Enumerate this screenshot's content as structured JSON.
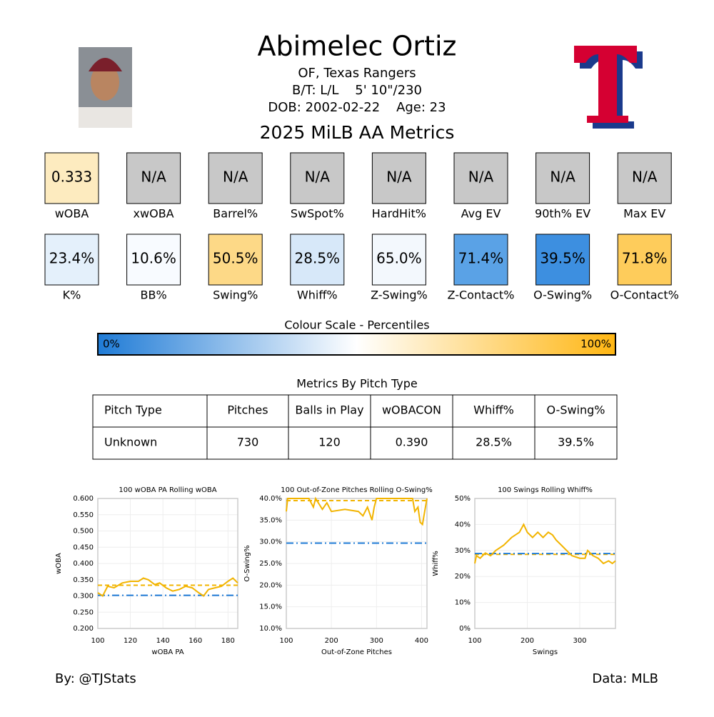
{
  "header": {
    "name": "Abimelec Ortiz",
    "position_team": "OF, Texas Rangers",
    "bats_throws": "B/T: L/L    5' 10\"/230",
    "dob_age": "DOB: 2002-02-22    Age: 23"
  },
  "metrics": {
    "title": "2025 MiLB AA Metrics",
    "rows": [
      [
        {
          "value": "0.333",
          "label": "wOBA",
          "color": "#fdebbf"
        },
        {
          "value": "N/A",
          "label": "xwOBA",
          "color": "#c8c8c8"
        },
        {
          "value": "N/A",
          "label": "Barrel%",
          "color": "#c8c8c8"
        },
        {
          "value": "N/A",
          "label": "SwSpot%",
          "color": "#c8c8c8"
        },
        {
          "value": "N/A",
          "label": "HardHit%",
          "color": "#c8c8c8"
        },
        {
          "value": "N/A",
          "label": "Avg EV",
          "color": "#c8c8c8"
        },
        {
          "value": "N/A",
          "label": "90th% EV",
          "color": "#c8c8c8"
        },
        {
          "value": "N/A",
          "label": "Max EV",
          "color": "#c8c8c8"
        }
      ],
      [
        {
          "value": "23.4%",
          "label": "K%",
          "color": "#e4f0fb"
        },
        {
          "value": "10.6%",
          "label": "BB%",
          "color": "#f8fbff"
        },
        {
          "value": "50.5%",
          "label": "Swing%",
          "color": "#fdd987"
        },
        {
          "value": "28.5%",
          "label": "Whiff%",
          "color": "#d7e8f9"
        },
        {
          "value": "65.0%",
          "label": "Z-Swing%",
          "color": "#f3f8fd"
        },
        {
          "value": "71.4%",
          "label": "Z-Contact%",
          "color": "#5aa2e6"
        },
        {
          "value": "39.5%",
          "label": "O-Swing%",
          "color": "#3d8fe0"
        },
        {
          "value": "71.8%",
          "label": "O-Contact%",
          "color": "#fecc5b"
        }
      ]
    ]
  },
  "colour_scale": {
    "title": "Colour Scale - Percentiles",
    "min_label": "0%",
    "max_label": "100%",
    "colors": [
      "#1f7bd6",
      "#ffffff",
      "#ffb612"
    ]
  },
  "table": {
    "title": "Metrics By Pitch Type",
    "headers": [
      "Pitch Type",
      "Pitches",
      "Balls in Play",
      "wOBACON",
      "Whiff%",
      "O-Swing%"
    ],
    "rows": [
      [
        "Unknown",
        "730",
        "120",
        "0.390",
        "28.5%",
        "39.5%"
      ]
    ]
  },
  "chart_data": [
    {
      "type": "line",
      "title": "100 wOBA PA Rolling wOBA",
      "xlabel": "wOBA PA",
      "ylabel": "wOBA",
      "x": [
        100,
        103,
        106,
        110,
        115,
        120,
        125,
        128,
        131,
        135,
        138,
        142,
        146,
        150,
        154,
        158,
        162,
        165,
        168,
        172,
        176,
        180,
        183,
        186
      ],
      "series": [
        {
          "color": "#f2b400",
          "values": [
            0.31,
            0.3,
            0.33,
            0.325,
            0.34,
            0.345,
            0.345,
            0.355,
            0.35,
            0.335,
            0.34,
            0.325,
            0.315,
            0.32,
            0.33,
            0.325,
            0.31,
            0.3,
            0.32,
            0.325,
            0.33,
            0.345,
            0.355,
            0.34
          ]
        }
      ],
      "reference_lines": [
        {
          "value": 0.333,
          "color": "#f2b400",
          "dash": "dashed"
        },
        {
          "value": 0.302,
          "color": "#1f7bd6",
          "dash": "dashdot"
        }
      ],
      "xlim": [
        100,
        186
      ],
      "ylim": [
        0.2,
        0.6
      ],
      "xticks": [
        100,
        120,
        140,
        160,
        180
      ],
      "yticks": [
        {
          "value": 0.2,
          "label": "0.200"
        },
        {
          "value": 0.25,
          "label": "0.250"
        },
        {
          "value": 0.3,
          "label": "0.300"
        },
        {
          "value": 0.35,
          "label": "0.350"
        },
        {
          "value": 0.4,
          "label": "0.400"
        },
        {
          "value": 0.45,
          "label": "0.450"
        },
        {
          "value": 0.5,
          "label": "0.500"
        },
        {
          "value": 0.55,
          "label": "0.550"
        },
        {
          "value": 0.6,
          "label": "0.600"
        }
      ],
      "grid": true
    },
    {
      "type": "line",
      "title": "100 Out-of-Zone Pitches Rolling O-Swing%",
      "xlabel": "Out-of-Zone Pitches",
      "ylabel": "O-Swing%",
      "x": [
        100,
        103,
        150,
        160,
        165,
        180,
        190,
        200,
        230,
        260,
        270,
        280,
        290,
        295,
        300,
        380,
        385,
        392,
        397,
        402,
        407,
        412
      ],
      "series": [
        {
          "color": "#f2b400",
          "values": [
            37,
            40,
            40,
            38,
            40,
            37.5,
            39,
            37,
            37.5,
            37,
            36,
            38,
            35,
            38,
            40,
            40,
            37,
            38,
            34.5,
            34,
            37,
            40
          ]
        }
      ],
      "reference_lines": [
        {
          "value": 39.5,
          "color": "#f2b400",
          "dash": "dashed"
        },
        {
          "value": 29.7,
          "color": "#1f7bd6",
          "dash": "dashdot"
        }
      ],
      "xlim": [
        100,
        412
      ],
      "ylim": [
        10,
        40
      ],
      "xticks": [
        100,
        200,
        300,
        400
      ],
      "yticks": [
        {
          "value": 10,
          "label": "10.0%"
        },
        {
          "value": 15,
          "label": "15.0%"
        },
        {
          "value": 20,
          "label": "20.0%"
        },
        {
          "value": 25,
          "label": "25.0%"
        },
        {
          "value": 30,
          "label": "30.0%"
        },
        {
          "value": 35,
          "label": "35.0%"
        },
        {
          "value": 40,
          "label": "40.0%"
        }
      ],
      "grid": true
    },
    {
      "type": "line",
      "title": "100 Swings Rolling Whiff%",
      "xlabel": "Swings",
      "ylabel": "Whiff%",
      "x": [
        100,
        103,
        110,
        120,
        130,
        140,
        155,
        170,
        185,
        193,
        200,
        210,
        220,
        230,
        240,
        248,
        255,
        265,
        275,
        285,
        300,
        310,
        315,
        325,
        335,
        345,
        355,
        362,
        368
      ],
      "series": [
        {
          "color": "#f2b400",
          "values": [
            25,
            28,
            27,
            29,
            28,
            30,
            32,
            35,
            37,
            40,
            37,
            35,
            37,
            35,
            37,
            36,
            34,
            32,
            30,
            28,
            27,
            27,
            30,
            28,
            27,
            25,
            26,
            25,
            26
          ]
        }
      ],
      "reference_lines": [
        {
          "value": 28.5,
          "color": "#f2b400",
          "dash": "dashed"
        },
        {
          "value": 28.8,
          "color": "#1f7bd6",
          "dash": "dashdot"
        }
      ],
      "xlim": [
        100,
        368
      ],
      "ylim": [
        0,
        50
      ],
      "xticks": [
        100,
        200,
        300
      ],
      "yticks": [
        {
          "value": 0,
          "label": "0%"
        },
        {
          "value": 10,
          "label": "10%"
        },
        {
          "value": 20,
          "label": "20%"
        },
        {
          "value": 30,
          "label": "30%"
        },
        {
          "value": 40,
          "label": "40%"
        },
        {
          "value": 50,
          "label": "50%"
        }
      ],
      "grid": true
    }
  ],
  "footer": {
    "by": "By: @TJStats",
    "source": "Data: MLB"
  }
}
